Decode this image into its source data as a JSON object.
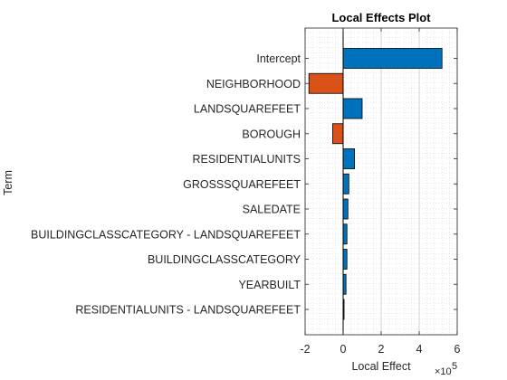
{
  "chart_data": {
    "type": "bar",
    "orientation": "horizontal",
    "title": "Local Effects Plot",
    "xlabel": "Local Effect",
    "ylabel": "Term",
    "x_multiplier_label": "×10",
    "x_multiplier_exponent": "5",
    "xlim": [
      -2,
      6
    ],
    "xticks": [
      "-2",
      "0",
      "2",
      "4",
      "6"
    ],
    "grid": true,
    "categories": [
      "Intercept",
      "NEIGHBORHOOD",
      "LANDSQUAREFEET",
      "BOROUGH",
      "RESIDENTIALUNITS",
      "GROSSSQUAREFEET",
      "SALEDATE",
      "BUILDINGCLASSCATEGORY - LANDSQUAREFEET",
      "BUILDINGCLASSCATEGORY",
      "YEARBUILT",
      "RESIDENTIALUNITS - LANDSQUAREFEET"
    ],
    "values": [
      5.2,
      -1.8,
      1.0,
      -0.55,
      0.6,
      0.3,
      0.25,
      0.2,
      0.2,
      0.15,
      0.05
    ],
    "positive_color": "#0072BD",
    "negative_color": "#D95319"
  }
}
